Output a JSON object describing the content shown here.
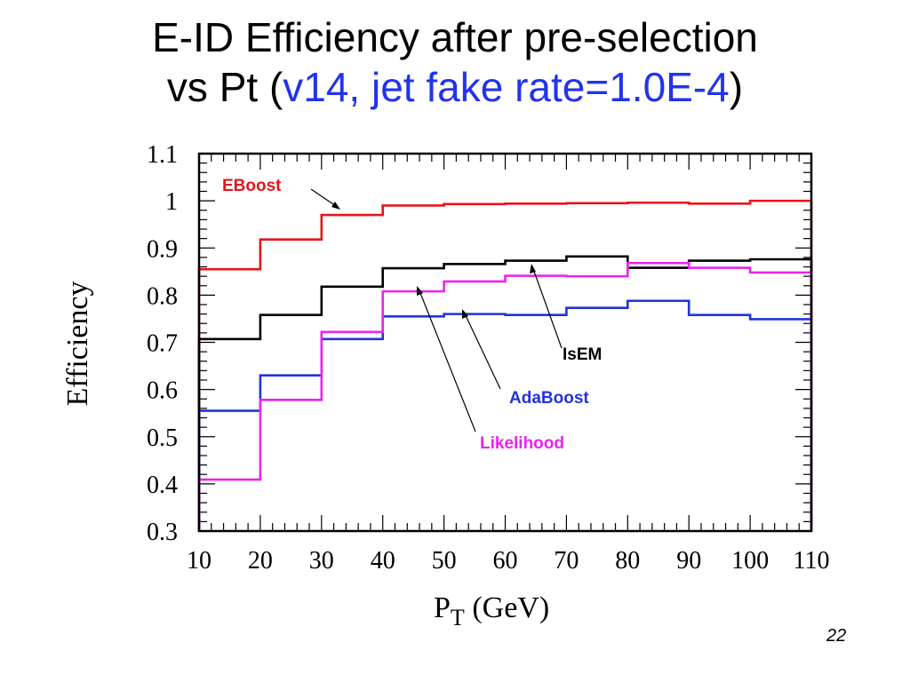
{
  "title": {
    "line1": "E-ID Efficiency after pre-selection",
    "line2_prefix": "vs Pt (",
    "line2_accent": "v14, jet fake rate=1.0E-4",
    "line2_suffix": ")",
    "accent_color": "#2233ee"
  },
  "page_number": "22",
  "chart_data": {
    "type": "line",
    "style": "step",
    "xlabel_main": "P",
    "xlabel_sub": "T",
    "xlabel_unit": " (GeV)",
    "ylabel": "Efficiency",
    "xlim": [
      10,
      110
    ],
    "ylim": [
      0.3,
      1.1
    ],
    "xticks": [
      "10",
      "20",
      "30",
      "40",
      "50",
      "60",
      "70",
      "80",
      "90",
      "100",
      "110"
    ],
    "yticks": [
      "0.3",
      "0.4",
      "0.5",
      "0.6",
      "0.7",
      "0.8",
      "0.9",
      "1",
      "1.1"
    ],
    "bin_edges": [
      10,
      20,
      30,
      40,
      50,
      60,
      70,
      80,
      90,
      100,
      110
    ],
    "series": [
      {
        "name": "EBoost",
        "color": "#e8141c",
        "values": [
          0.855,
          0.918,
          0.97,
          0.99,
          0.993,
          0.994,
          0.995,
          0.996,
          0.994,
          1.0
        ]
      },
      {
        "name": "IsEM",
        "color": "#000000",
        "values": [
          0.707,
          0.758,
          0.818,
          0.857,
          0.866,
          0.873,
          0.882,
          0.858,
          0.873,
          0.876
        ]
      },
      {
        "name": "AdaBoost",
        "color": "#2233dd",
        "values": [
          0.555,
          0.63,
          0.707,
          0.755,
          0.76,
          0.758,
          0.773,
          0.788,
          0.758,
          0.749
        ]
      },
      {
        "name": "Likelihood",
        "color": "#ee22ee",
        "values": [
          0.409,
          0.578,
          0.722,
          0.808,
          0.829,
          0.841,
          0.84,
          0.868,
          0.858,
          0.848
        ]
      }
    ],
    "grid": false
  }
}
